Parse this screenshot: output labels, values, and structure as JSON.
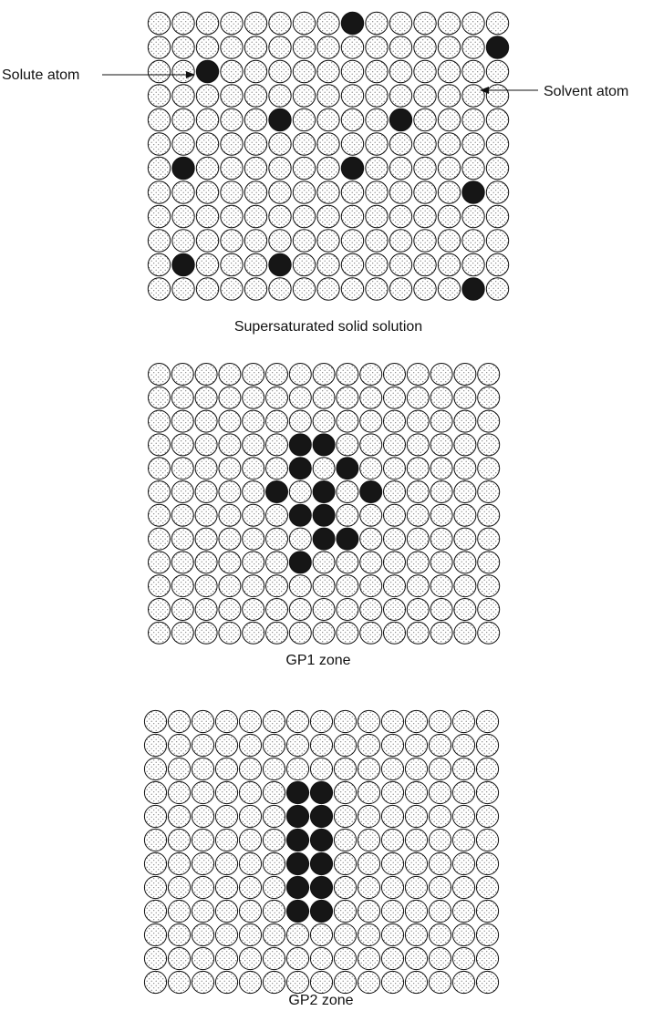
{
  "colors": {
    "ink": "#111111",
    "solvent_fill": "#ffffff",
    "solute_fill": "#161616",
    "dot": "#6a6a6a"
  },
  "callouts": {
    "solute_label": "Solute atom",
    "solvent_label": "Solvent atom"
  },
  "panels": [
    {
      "id": "supersaturated",
      "caption": "Supersaturated solid solution",
      "columns": 15,
      "rows": 12,
      "solute_atoms": [
        [
          0,
          8
        ],
        [
          1,
          14
        ],
        [
          2,
          2
        ],
        [
          4,
          5
        ],
        [
          4,
          10
        ],
        [
          6,
          1
        ],
        [
          6,
          8
        ],
        [
          7,
          13
        ],
        [
          10,
          1
        ],
        [
          10,
          5
        ],
        [
          11,
          13
        ]
      ]
    },
    {
      "id": "gp1",
      "caption": "GP1 zone",
      "columns": 15,
      "rows": 12,
      "solute_atoms": [
        [
          3,
          6
        ],
        [
          3,
          7
        ],
        [
          4,
          6
        ],
        [
          4,
          8
        ],
        [
          5,
          5
        ],
        [
          5,
          7
        ],
        [
          5,
          9
        ],
        [
          6,
          6
        ],
        [
          6,
          7
        ],
        [
          7,
          7
        ],
        [
          7,
          8
        ],
        [
          8,
          6
        ]
      ]
    },
    {
      "id": "gp2",
      "caption": "GP2 zone",
      "columns": 15,
      "rows": 12,
      "solute_atoms": [
        [
          3,
          6
        ],
        [
          3,
          7
        ],
        [
          4,
          6
        ],
        [
          4,
          7
        ],
        [
          5,
          6
        ],
        [
          5,
          7
        ],
        [
          6,
          6
        ],
        [
          6,
          7
        ],
        [
          7,
          6
        ],
        [
          7,
          7
        ],
        [
          8,
          6
        ],
        [
          8,
          7
        ]
      ]
    }
  ]
}
